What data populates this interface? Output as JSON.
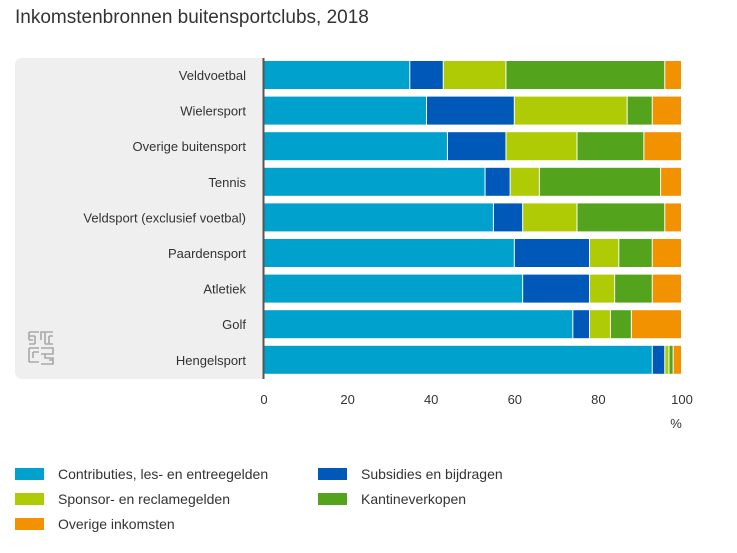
{
  "chart_data": {
    "type": "bar",
    "orientation": "horizontal",
    "stacked": true,
    "title": "Inkomstenbronnen buitensportclubs, 2018",
    "xlabel": "%",
    "xlim": [
      0,
      100
    ],
    "xticks": [
      0,
      20,
      40,
      60,
      80,
      100
    ],
    "grid": false,
    "legend_position": "bottom",
    "categories": [
      "Veldvoetbal",
      "Wielersport",
      "Overige buitensport",
      "Tennis",
      "Veldsport (exclusief voetbal)",
      "Paardensport",
      "Atletiek",
      "Golf",
      "Hengelsport"
    ],
    "series": [
      {
        "name": "Contributies, les- en entreegelden",
        "color": "#00a1cd",
        "values": [
          35,
          39,
          44,
          53,
          55,
          60,
          62,
          74,
          93
        ]
      },
      {
        "name": "Subsidies en bijdragen",
        "color": "#0058b8",
        "values": [
          8,
          21,
          14,
          6,
          7,
          18,
          16,
          4,
          3
        ]
      },
      {
        "name": "Sponsor- en reclamegelden",
        "color": "#afcb05",
        "values": [
          15,
          27,
          17,
          7,
          13,
          7,
          6,
          5,
          1
        ]
      },
      {
        "name": "Kantineverkopen",
        "color": "#53a31d",
        "values": [
          38,
          6,
          16,
          29,
          21,
          8,
          9,
          5,
          1
        ]
      },
      {
        "name": "Overige inkomsten",
        "color": "#f39200",
        "values": [
          4,
          7,
          9,
          5,
          4,
          7,
          7,
          12,
          2
        ]
      }
    ]
  },
  "logo": {
    "name": "cbs-logo-icon"
  }
}
